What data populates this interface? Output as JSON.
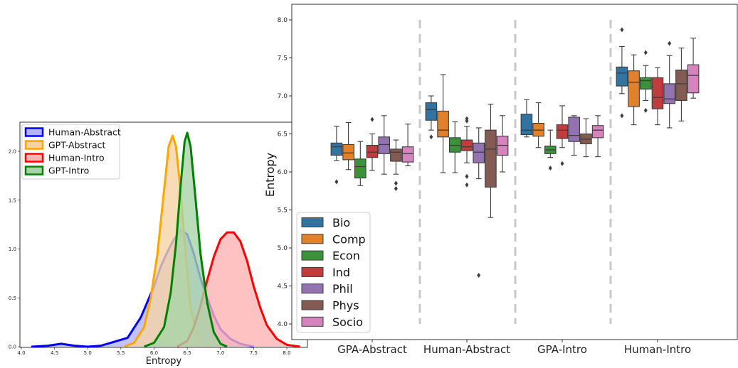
{
  "chart_data": [
    {
      "type": "area",
      "xlabel": "Entropy",
      "ylabel": "",
      "xlim": [
        4.0,
        8.25
      ],
      "ylim": [
        0,
        2.35
      ],
      "x_ticks": [
        "4.0",
        "4.5",
        "5.0",
        "5.5",
        "6.0",
        "6.5",
        "7.0",
        "7.5",
        "8.0"
      ],
      "y_ticks": [
        "0.0",
        "0.5",
        "1.0",
        "1.5",
        "2.0"
      ],
      "legend": {
        "placement": "top-left"
      },
      "series": [
        {
          "name": "Human-Abstract",
          "color": "#0000ff",
          "fill": "#b3b3ff",
          "points": [
            [
              4.15,
              0.0
            ],
            [
              4.4,
              0.01
            ],
            [
              4.6,
              0.03
            ],
            [
              4.8,
              0.01
            ],
            [
              5.0,
              0.0
            ],
            [
              5.2,
              0.01
            ],
            [
              5.4,
              0.05
            ],
            [
              5.6,
              0.09
            ],
            [
              5.8,
              0.3
            ],
            [
              6.0,
              0.62
            ],
            [
              6.1,
              0.82
            ],
            [
              6.2,
              0.97
            ],
            [
              6.3,
              1.1
            ],
            [
              6.4,
              1.19
            ],
            [
              6.5,
              1.15
            ],
            [
              6.6,
              0.95
            ],
            [
              6.7,
              0.7
            ],
            [
              6.8,
              0.5
            ],
            [
              6.9,
              0.32
            ],
            [
              7.0,
              0.18
            ],
            [
              7.15,
              0.08
            ],
            [
              7.3,
              0.03
            ],
            [
              7.5,
              0.0
            ]
          ]
        },
        {
          "name": "GPT-Abstract",
          "color": "#ffa500",
          "fill": "#f5d3a3",
          "points": [
            [
              5.55,
              0.0
            ],
            [
              5.7,
              0.04
            ],
            [
              5.85,
              0.2
            ],
            [
              5.95,
              0.5
            ],
            [
              6.05,
              0.95
            ],
            [
              6.15,
              1.6
            ],
            [
              6.22,
              2.05
            ],
            [
              6.28,
              2.16
            ],
            [
              6.33,
              2.05
            ],
            [
              6.4,
              1.6
            ],
            [
              6.48,
              0.9
            ],
            [
              6.55,
              0.4
            ],
            [
              6.65,
              0.1
            ],
            [
              6.8,
              0.0
            ]
          ]
        },
        {
          "name": "Human-Intro",
          "color": "#ff0000",
          "fill": "#ffb3b3",
          "points": [
            [
              6.35,
              0.0
            ],
            [
              6.5,
              0.06
            ],
            [
              6.6,
              0.2
            ],
            [
              6.7,
              0.42
            ],
            [
              6.8,
              0.68
            ],
            [
              6.9,
              0.92
            ],
            [
              7.0,
              1.1
            ],
            [
              7.1,
              1.17
            ],
            [
              7.2,
              1.17
            ],
            [
              7.3,
              1.08
            ],
            [
              7.4,
              0.88
            ],
            [
              7.5,
              0.62
            ],
            [
              7.6,
              0.4
            ],
            [
              7.7,
              0.22
            ],
            [
              7.85,
              0.08
            ],
            [
              8.0,
              0.02
            ],
            [
              8.2,
              0.0
            ]
          ]
        },
        {
          "name": "GPT-Intro",
          "color": "#008000",
          "fill": "#a7d4a7",
          "points": [
            [
              5.85,
              0.0
            ],
            [
              6.0,
              0.04
            ],
            [
              6.15,
              0.2
            ],
            [
              6.25,
              0.55
            ],
            [
              6.33,
              1.05
            ],
            [
              6.4,
              1.65
            ],
            [
              6.46,
              2.1
            ],
            [
              6.5,
              2.19
            ],
            [
              6.55,
              2.05
            ],
            [
              6.62,
              1.55
            ],
            [
              6.7,
              0.95
            ],
            [
              6.8,
              0.45
            ],
            [
              6.9,
              0.15
            ],
            [
              7.0,
              0.03
            ],
            [
              7.1,
              0.0
            ]
          ]
        }
      ]
    },
    {
      "type": "box",
      "xlabel": "",
      "ylabel": "Entropy",
      "ylim": [
        3.8,
        8.2
      ],
      "y_ticks": [
        "4.0",
        "4.5",
        "5.0",
        "5.5",
        "6.0",
        "6.5",
        "7.0",
        "7.5",
        "8.0"
      ],
      "categories": [
        "GPA-Abstract",
        "Human-Abstract",
        "GPA-Intro",
        "Human-Intro"
      ],
      "legend": {
        "placement": "bottom-left"
      },
      "hue": [
        {
          "name": "Bio",
          "color": "#3274a1"
        },
        {
          "name": "Comp",
          "color": "#e1812c"
        },
        {
          "name": "Econ",
          "color": "#3a923a"
        },
        {
          "name": "Ind",
          "color": "#c03d3e"
        },
        {
          "name": "Phil",
          "color": "#9372b2"
        },
        {
          "name": "Phys",
          "color": "#845b53"
        },
        {
          "name": "Socio",
          "color": "#d684bd"
        }
      ],
      "boxes": [
        [
          {
            "q1": 6.22,
            "med": 6.33,
            "q3": 6.38,
            "lo": 6.15,
            "hi": 6.6,
            "out": [
              5.87
            ]
          },
          {
            "q1": 6.16,
            "med": 6.25,
            "q3": 6.36,
            "lo": 6.03,
            "hi": 6.65,
            "out": []
          },
          {
            "q1": 5.92,
            "med": 6.07,
            "q3": 6.17,
            "lo": 5.82,
            "hi": 6.4,
            "out": []
          },
          {
            "q1": 6.19,
            "med": 6.26,
            "q3": 6.35,
            "lo": 6.02,
            "hi": 6.5,
            "out": [
              6.69
            ]
          },
          {
            "q1": 6.24,
            "med": 6.36,
            "q3": 6.46,
            "lo": 5.97,
            "hi": 6.74,
            "out": []
          },
          {
            "q1": 6.14,
            "med": 6.26,
            "q3": 6.3,
            "lo": 5.97,
            "hi": 6.42,
            "out": [
              5.85,
              5.78
            ]
          },
          {
            "q1": 6.13,
            "med": 6.24,
            "q3": 6.33,
            "lo": 6.08,
            "hi": 6.63,
            "out": []
          }
        ],
        [
          {
            "q1": 6.68,
            "med": 6.82,
            "q3": 6.91,
            "lo": 6.55,
            "hi": 7.0,
            "out": [
              6.46
            ]
          },
          {
            "q1": 6.46,
            "med": 6.55,
            "q3": 6.8,
            "lo": 5.99,
            "hi": 7.28,
            "out": []
          },
          {
            "q1": 6.26,
            "med": 6.35,
            "q3": 6.45,
            "lo": 5.99,
            "hi": 6.66,
            "out": []
          },
          {
            "q1": 6.28,
            "med": 6.33,
            "q3": 6.42,
            "lo": 6.12,
            "hi": 6.6,
            "out": [
              6.7,
              6.67,
              5.94,
              5.83
            ]
          },
          {
            "q1": 6.12,
            "med": 6.26,
            "q3": 6.38,
            "lo": 5.91,
            "hi": 6.58,
            "out": [
              4.64
            ]
          },
          {
            "q1": 5.8,
            "med": 6.3,
            "q3": 6.55,
            "lo": 5.4,
            "hi": 6.89,
            "out": []
          },
          {
            "q1": 6.22,
            "med": 6.35,
            "q3": 6.47,
            "lo": 6.0,
            "hi": 6.74,
            "out": []
          }
        ],
        [
          {
            "q1": 6.49,
            "med": 6.55,
            "q3": 6.76,
            "lo": 6.46,
            "hi": 6.95,
            "out": []
          },
          {
            "q1": 6.47,
            "med": 6.55,
            "q3": 6.64,
            "lo": 6.32,
            "hi": 6.91,
            "out": []
          },
          {
            "q1": 6.24,
            "med": 6.29,
            "q3": 6.34,
            "lo": 6.19,
            "hi": 6.55,
            "out": [
              6.05
            ]
          },
          {
            "q1": 6.44,
            "med": 6.55,
            "q3": 6.62,
            "lo": 6.32,
            "hi": 6.87,
            "out": [
              6.11
            ]
          },
          {
            "q1": 6.4,
            "med": 6.48,
            "q3": 6.72,
            "lo": 6.22,
            "hi": 6.74,
            "out": []
          },
          {
            "q1": 6.37,
            "med": 6.43,
            "q3": 6.5,
            "lo": 6.2,
            "hi": 6.7,
            "out": []
          },
          {
            "q1": 6.45,
            "med": 6.55,
            "q3": 6.61,
            "lo": 6.2,
            "hi": 6.74,
            "out": []
          }
        ],
        [
          {
            "q1": 7.13,
            "med": 7.3,
            "q3": 7.38,
            "lo": 7.03,
            "hi": 7.65,
            "out": [
              7.87,
              6.74
            ]
          },
          {
            "q1": 6.86,
            "med": 7.18,
            "q3": 7.33,
            "lo": 6.62,
            "hi": 7.54,
            "out": []
          },
          {
            "q1": 7.09,
            "med": 7.2,
            "q3": 7.24,
            "lo": 6.94,
            "hi": 7.4,
            "out": [
              7.57,
              6.81
            ]
          },
          {
            "q1": 6.83,
            "med": 6.98,
            "q3": 7.24,
            "lo": 6.62,
            "hi": 7.37,
            "out": []
          },
          {
            "q1": 6.9,
            "med": 6.96,
            "q3": 7.16,
            "lo": 6.58,
            "hi": 7.53,
            "out": [
              7.69
            ]
          },
          {
            "q1": 6.94,
            "med": 7.16,
            "q3": 7.34,
            "lo": 6.67,
            "hi": 7.63,
            "out": []
          },
          {
            "q1": 7.04,
            "med": 7.27,
            "q3": 7.41,
            "lo": 6.97,
            "hi": 7.76,
            "out": []
          }
        ]
      ]
    }
  ]
}
